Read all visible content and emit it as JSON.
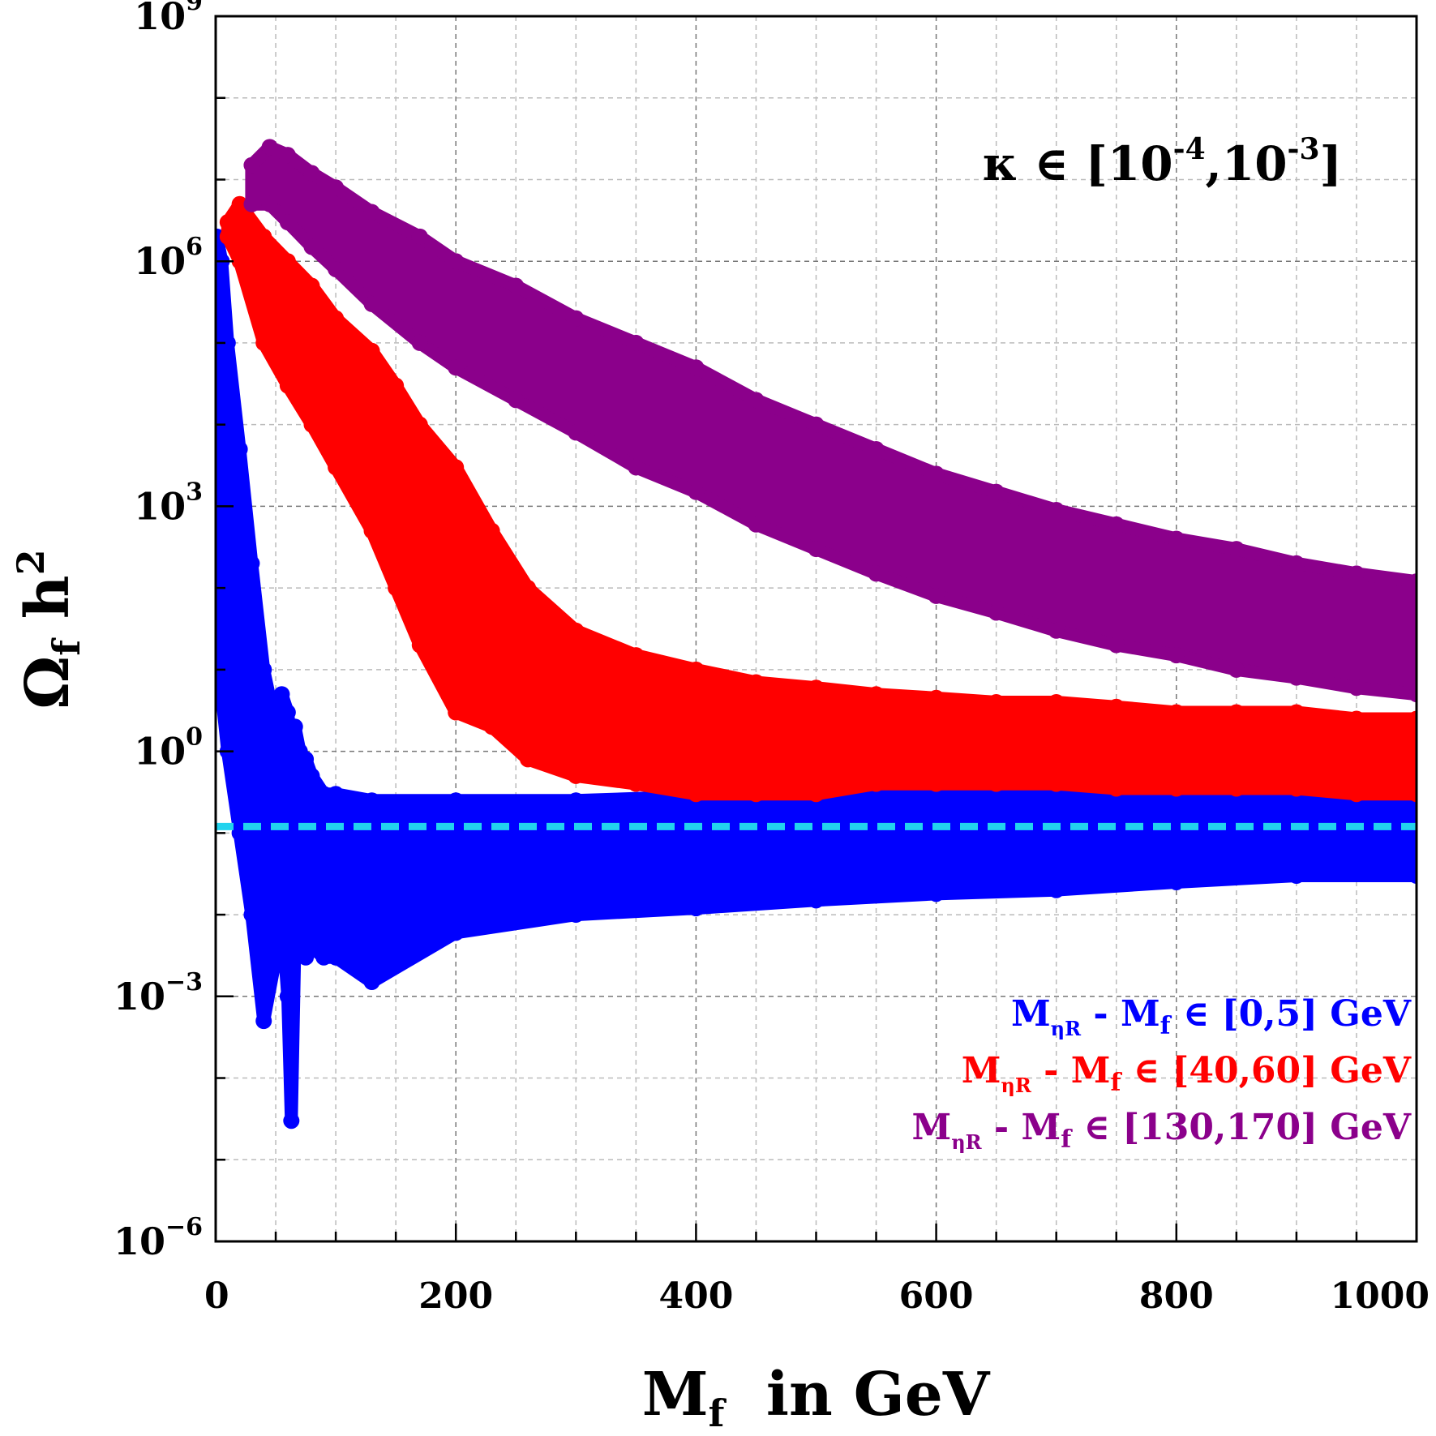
{
  "chart_data": {
    "type": "scatter",
    "xlabel": {
      "main": "M",
      "sub": "f",
      "rest": "  in GeV"
    },
    "ylabel": {
      "main": "Ω",
      "sub": "f",
      "rest": " h",
      "sup": "2"
    },
    "xlim": [
      0,
      1000
    ],
    "ylim": [
      1e-06,
      1000000000.0
    ],
    "yscale": "log",
    "grid": true,
    "x_ticks": [
      {
        "value": 0,
        "label": "0"
      },
      {
        "value": 200,
        "label": "200"
      },
      {
        "value": 400,
        "label": "400"
      },
      {
        "value": 600,
        "label": "600"
      },
      {
        "value": 800,
        "label": "800"
      },
      {
        "value": 1000,
        "label": "1000"
      }
    ],
    "y_ticks": [
      {
        "value": 1000000000.0,
        "base": "10",
        "exp": "9"
      },
      {
        "value": 1000000.0,
        "base": "10",
        "exp": "6"
      },
      {
        "value": 1000.0,
        "base": "10",
        "exp": "3"
      },
      {
        "value": 1,
        "base": "10",
        "exp": "0"
      },
      {
        "value": 0.001,
        "base": "10",
        "exp": "−3"
      },
      {
        "value": 1e-06,
        "base": "10",
        "exp": "−6"
      }
    ],
    "annotation": {
      "kappa": "κ ∈ [10",
      "e1": "-4",
      "mid": ",10",
      "e2": "-3",
      "end": "]"
    },
    "reference_line": {
      "y": 0.12,
      "color": "#22d3ee",
      "style": "dashed"
    },
    "legend_placement": "bottom-right",
    "series": [
      {
        "name": "M - M ∈ [0,5] GeV",
        "legend": {
          "m": "M",
          "msub": "ηR",
          "minus": " - M",
          "fsub": "f",
          "range": " ∈ [0,5] GeV"
        },
        "color": "#0000ff",
        "band": {
          "x": [
            1,
            5,
            10,
            20,
            30,
            40,
            50,
            55,
            60,
            63,
            66,
            70,
            75,
            80,
            90,
            100,
            130,
            200,
            300,
            400,
            500,
            600,
            700,
            800,
            900,
            1000
          ],
          "y_low": [
            10.0,
            5.0,
            1.0,
            0.1,
            0.01,
            0.0005,
            0.003,
            0.01,
            0.001,
            3e-05,
            0.005,
            0.02,
            0.003,
            0.004,
            0.003,
            0.003,
            0.0015,
            0.006,
            0.01,
            0.012,
            0.015,
            0.018,
            0.02,
            0.025,
            0.03,
            0.03
          ],
          "y_high": [
            2000000.0,
            1000000.0,
            100000.0,
            5000.0,
            200.0,
            10.0,
            2.0,
            5.0,
            3.0,
            1.0,
            2.0,
            1.0,
            0.8,
            0.5,
            0.3,
            0.3,
            0.25,
            0.25,
            0.25,
            0.28,
            0.3,
            0.3,
            0.35,
            0.4,
            0.45,
            0.45
          ]
        }
      },
      {
        "name": "M - M ∈ [40,60] GeV",
        "legend": {
          "m": "M",
          "msub": "ηR",
          "minus": " - M",
          "fsub": "f",
          "range": " ∈ [40,60] GeV"
        },
        "color": "#ff0000",
        "band": {
          "x": [
            10,
            20,
            40,
            60,
            80,
            100,
            130,
            150,
            170,
            200,
            230,
            260,
            300,
            350,
            400,
            450,
            500,
            550,
            600,
            650,
            700,
            750,
            800,
            850,
            900,
            950,
            1000
          ],
          "y_low": [
            2000000.0,
            1000000.0,
            100000.0,
            30000.0,
            10000.0,
            3000.0,
            500.0,
            100.0,
            20.0,
            3.0,
            2.0,
            0.8,
            0.5,
            0.4,
            0.3,
            0.3,
            0.3,
            0.4,
            0.4,
            0.4,
            0.4,
            0.35,
            0.35,
            0.35,
            0.35,
            0.3,
            0.3
          ],
          "y_high": [
            3000000.0,
            5000000.0,
            2000000.0,
            1000000.0,
            500000.0,
            200000.0,
            80000.0,
            30000.0,
            10000.0,
            3000.0,
            500.0,
            100.0,
            30.0,
            15.0,
            10.0,
            7.0,
            6.0,
            5.0,
            4.5,
            4.0,
            4.0,
            3.5,
            3.0,
            3.0,
            3.0,
            2.5,
            2.5
          ]
        }
      },
      {
        "name": "M - M ∈ [130,170] GeV",
        "legend": {
          "m": "M",
          "msub": "ηR",
          "minus": " - M",
          "fsub": "f",
          "range": " ∈ [130,170] GeV"
        },
        "color": "#8b008b",
        "band": {
          "x": [
            30,
            45,
            60,
            80,
            100,
            130,
            170,
            200,
            250,
            300,
            350,
            400,
            450,
            500,
            550,
            600,
            650,
            700,
            750,
            800,
            850,
            900,
            950,
            1000
          ],
          "y_low": [
            5000000.0,
            5000000.0,
            3000000.0,
            1500000.0,
            800000.0,
            300000.0,
            100000.0,
            50000.0,
            20000.0,
            8000.0,
            3000.0,
            1500.0,
            600.0,
            300.0,
            150.0,
            80.0,
            50.0,
            30.0,
            20.0,
            15.0,
            10.0,
            8.0,
            6.0,
            5.0
          ],
          "y_high": [
            15000000.0,
            25000000.0,
            20000000.0,
            12000000.0,
            8000000.0,
            4000000.0,
            2000000.0,
            1000000.0,
            500000.0,
            200000.0,
            100000.0,
            50000.0,
            20000.0,
            10000.0,
            5000.0,
            2500.0,
            1500.0,
            900.0,
            600.0,
            400.0,
            300.0,
            200.0,
            150.0,
            120.0
          ]
        }
      }
    ]
  }
}
